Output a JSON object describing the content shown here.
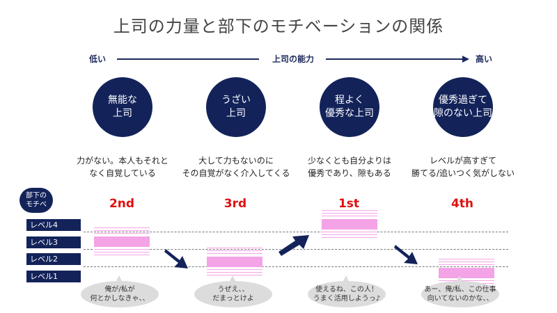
{
  "title": "上司の力量と部下のモチベーションの関係",
  "axis": {
    "low": "低い",
    "middle": "上司の能力",
    "high": "高い"
  },
  "motivation_label": "部下の\nモチベ",
  "levels": [
    "レベル4",
    "レベル3",
    "レベル2",
    "レベル1"
  ],
  "bosses": [
    {
      "name": "無能な\n上司",
      "description": "力がない。本人もそれと\nなく自覚している",
      "rank": "2nd",
      "motivation_level": 3,
      "comment": "俺が/私が\n何とかしなきゃ、、"
    },
    {
      "name": "うざい\n上司",
      "description": "大して力もないのに\nその自覚がなく介入してくる",
      "rank": "3rd",
      "motivation_level": 2,
      "comment": "うぜえ、、\nだまっとけよ"
    },
    {
      "name": "程よく\n優秀な上司",
      "description": "少なくとも自分よりは\n優秀であり、隙もある",
      "rank": "1st",
      "motivation_level": 4,
      "comment": "使えるね、この人！\nうまく活用しようっ♪"
    },
    {
      "name": "優秀過ぎて\n隙のない上司",
      "description": "レベルが高すぎて\n勝てる/追いつく気がしない",
      "rank": "4th",
      "motivation_level": 1,
      "comment": "あー、俺/私、この仕事\n向いてないのかな、、"
    }
  ],
  "colors": {
    "navy": "#13235a",
    "rank_red": "#e01010",
    "bar_pink": "#f4a3e6",
    "bubble_gray": "#dcdcdc"
  }
}
